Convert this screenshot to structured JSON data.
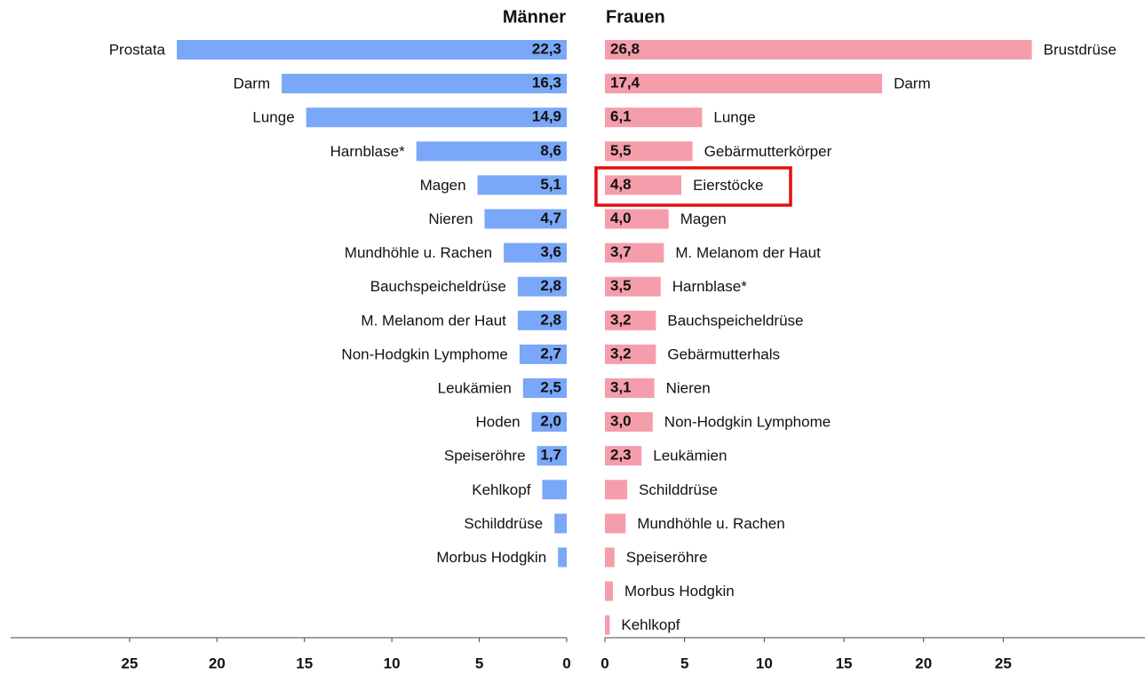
{
  "chart_data": [
    {
      "type": "hbar",
      "direction": "left",
      "title": "Männer",
      "color": "#7aa7f7",
      "categories": [
        "Prostata",
        "Darm",
        "Lunge",
        "Harnblase*",
        "Magen",
        "Nieren",
        "Mundhöhle u. Rachen",
        "Bauchspeicheldrüse",
        "M. Melanom der Haut",
        "Non-Hodgkin Lymphome",
        "Leukämien",
        "Hoden",
        "Speiseröhre",
        "Kehlkopf",
        "Schilddrüse",
        "Morbus Hodgkin"
      ],
      "values": [
        22.3,
        16.3,
        14.9,
        8.6,
        5.1,
        4.7,
        3.6,
        2.8,
        2.8,
        2.7,
        2.5,
        2.0,
        1.7,
        1.4,
        0.7,
        0.5
      ],
      "value_labels": [
        "22,3",
        "16,3",
        "14,9",
        "8,6",
        "5,1",
        "4,7",
        "3,6",
        "2,8",
        "2,8",
        "2,7",
        "2,5",
        "2,0",
        "1,7",
        null,
        null,
        null
      ],
      "xlim": [
        0,
        31.8
      ],
      "xticks": [
        0,
        5,
        10,
        15,
        20,
        25
      ]
    },
    {
      "type": "hbar",
      "direction": "right",
      "title": "Frauen",
      "color": "#f59dab",
      "categories": [
        "Brustdrüse",
        "Darm",
        "Lunge",
        "Gebärmutterkörper",
        "Eierstöcke",
        "Magen",
        "M. Melanom der Haut",
        "Harnblase*",
        "Bauchspeicheldrüse",
        "Gebärmutterhals",
        "Nieren",
        "Non-Hodgkin Lymphome",
        "Leukämien",
        "Schilddrüse",
        "Mundhöhle u. Rachen",
        "Speiseröhre",
        "Morbus Hodgkin",
        "Kehlkopf"
      ],
      "values": [
        26.8,
        17.4,
        6.1,
        5.5,
        4.8,
        4.0,
        3.7,
        3.5,
        3.2,
        3.2,
        3.1,
        3.0,
        2.3,
        1.4,
        1.3,
        0.6,
        0.5,
        0.3
      ],
      "value_labels": [
        "26,8",
        "17,4",
        "6,1",
        "5,5",
        "4,8",
        "4,0",
        "3,7",
        "3,5",
        "3,2",
        "3,2",
        "3,1",
        "3,0",
        "2,3",
        null,
        null,
        null,
        null,
        null
      ],
      "xlim": [
        0,
        33.9
      ],
      "xticks": [
        0,
        5,
        10,
        15,
        20,
        25
      ]
    }
  ]
}
